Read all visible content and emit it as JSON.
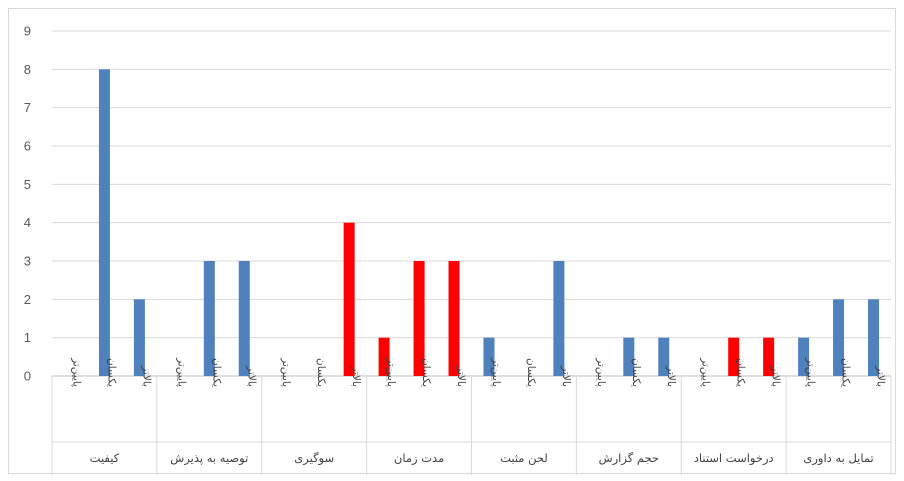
{
  "chart_data": {
    "type": "bar",
    "title": "",
    "xlabel": "",
    "ylabel": "",
    "ylim": [
      0,
      9
    ],
    "yticks": [
      0,
      1,
      2,
      3,
      4,
      5,
      6,
      7,
      8,
      9
    ],
    "grid": true,
    "legend": "none",
    "sublabels": [
      "پایین‌تر",
      "یکسان",
      "بالاتر"
    ],
    "groups": [
      {
        "label": "کیفیت",
        "values": [
          0,
          8,
          2
        ],
        "color": "#4f81bd"
      },
      {
        "label": "توصیه به پذیرش",
        "values": [
          0,
          3,
          3
        ],
        "color": "#4f81bd"
      },
      {
        "label": "سوگیری",
        "values": [
          0,
          0,
          4
        ],
        "color": "#ff0000"
      },
      {
        "label": "مدت زمان",
        "values": [
          1,
          3,
          3
        ],
        "color": "#ff0000"
      },
      {
        "label": "لحن مثبت",
        "values": [
          1,
          0,
          3
        ],
        "color": "#4f81bd"
      },
      {
        "label": "حجم گزارش",
        "values": [
          0,
          1,
          1
        ],
        "color": "#4f81bd"
      },
      {
        "label": "درخواست استناد",
        "values": [
          0,
          1,
          1
        ],
        "color": "#ff0000"
      },
      {
        "label": "تمایل به داوری",
        "values": [
          1,
          2,
          2
        ],
        "color": "#4f81bd"
      }
    ]
  }
}
